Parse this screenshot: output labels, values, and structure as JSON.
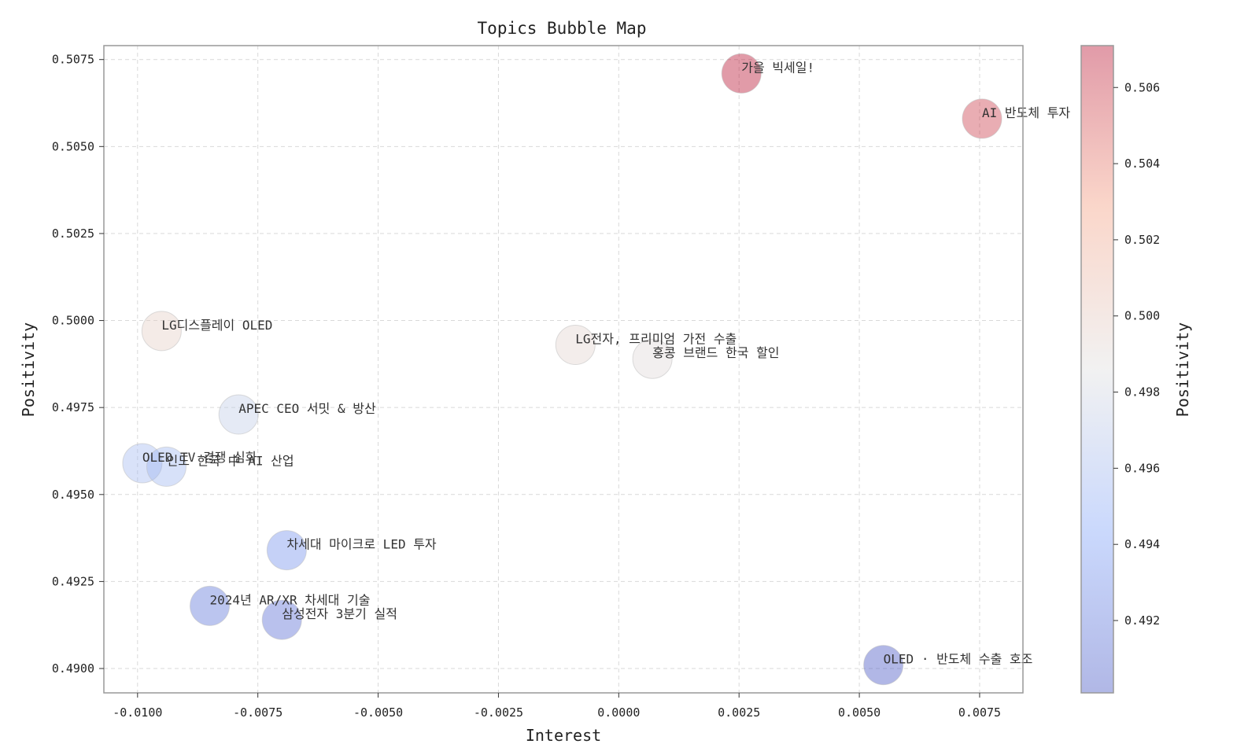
{
  "chart_data": {
    "type": "scatter",
    "title": "Topics Bubble Map",
    "xlabel": "Interest",
    "ylabel": "Positivity",
    "xlim": [
      -0.0107,
      0.0084
    ],
    "ylim": [
      0.4893,
      0.5079
    ],
    "x_ticks": [
      "-0.0100",
      "-0.0075",
      "-0.0050",
      "-0.0025",
      "0.0000",
      "0.0025",
      "0.0050",
      "0.0075"
    ],
    "x_tick_values": [
      -0.01,
      -0.0075,
      -0.005,
      -0.0025,
      0.0,
      0.0025,
      0.005,
      0.0075
    ],
    "y_ticks": [
      "0.4900",
      "0.4925",
      "0.4950",
      "0.4975",
      "0.5000",
      "0.5025",
      "0.5050",
      "0.5075"
    ],
    "y_tick_values": [
      0.49,
      0.4925,
      0.495,
      0.4975,
      0.5,
      0.5025,
      0.505,
      0.5075
    ],
    "grid": true,
    "colorbar": {
      "label": "Positivity",
      "range": [
        0.4901,
        0.5071
      ],
      "ticks": [
        "0.492",
        "0.494",
        "0.496",
        "0.498",
        "0.500",
        "0.502",
        "0.504",
        "0.506"
      ],
      "tick_values": [
        0.492,
        0.494,
        0.496,
        0.498,
        0.5,
        0.502,
        0.504,
        0.506
      ],
      "colormap": "coolwarm",
      "alpha": 0.4
    },
    "points": [
      {
        "label": "가을 빅세일!",
        "x": 0.00255,
        "y": 0.5071
      },
      {
        "label": "AI 반도체 투자",
        "x": 0.00755,
        "y": 0.5058
      },
      {
        "label": "LG디스플레이 OLED",
        "x": -0.0095,
        "y": 0.4997
      },
      {
        "label": "LG전자, 프리미엄 가전 수출",
        "x": -0.0009,
        "y": 0.4993
      },
      {
        "label": "홍콩 브랜드 한국 할인",
        "x": 0.0007,
        "y": 0.4989
      },
      {
        "label": "APEC CEO 서밋 & 방산",
        "x": -0.0079,
        "y": 0.4973
      },
      {
        "label": "OLED TV 경쟁 심화",
        "x": -0.0099,
        "y": 0.4959
      },
      {
        "label": "인도 한국 中 AI 산업",
        "x": -0.0094,
        "y": 0.4958
      },
      {
        "label": "차세대 마이크로 LED 투자",
        "x": -0.0069,
        "y": 0.4934
      },
      {
        "label": "2024년 AR/XR 차세대 기술",
        "x": -0.0085,
        "y": 0.4918
      },
      {
        "label": "삼성전자 3분기 실적",
        "x": -0.007,
        "y": 0.4914
      },
      {
        "label": "OLED · 반도체 수출 호조",
        "x": 0.0055,
        "y": 0.4901
      }
    ]
  }
}
